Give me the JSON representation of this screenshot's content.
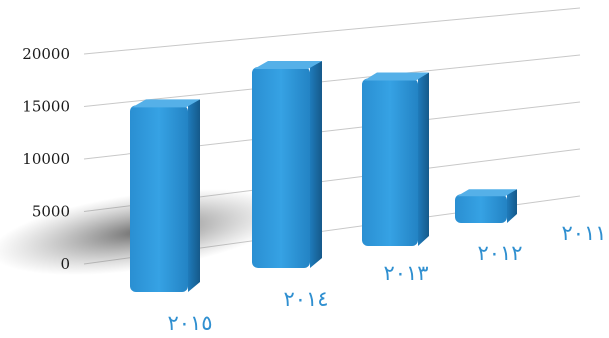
{
  "chart_data": {
    "type": "bar",
    "categories": [
      "٢٠١٥",
      "٢٠١٤",
      "٢٠١٣",
      "٢٠١٢",
      "٢٠١١"
    ],
    "values": [
      15600,
      16800,
      14000,
      2400,
      0
    ],
    "yticks": [
      "0",
      "5000",
      "10000",
      "15000",
      "20000"
    ],
    "ylim": [
      0,
      20000
    ],
    "grid": true,
    "colors": {
      "bar": "#2e95d6",
      "bar_dark": "#1d6fa8",
      "bar_top": "#55b0e8",
      "label": "#2f8fd0"
    }
  }
}
